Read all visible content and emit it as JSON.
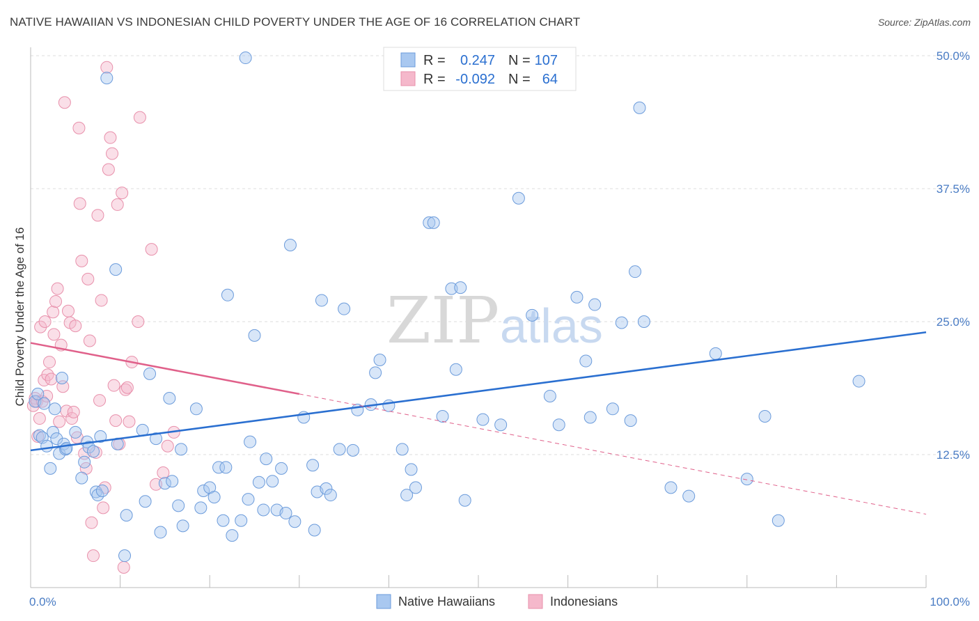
{
  "title": "NATIVE HAWAIIAN VS INDONESIAN CHILD POVERTY UNDER THE AGE OF 16 CORRELATION CHART",
  "source": "Source: ZipAtlas.com",
  "watermark": {
    "zip": "ZIP",
    "atlas": "atlas"
  },
  "colors": {
    "blue_fill": "#a9c8f0",
    "blue_stroke": "#6b9bdb",
    "blue_line": "#2a6fd0",
    "pink_fill": "#f5b8cb",
    "pink_stroke": "#e890ab",
    "pink_line": "#e0608a",
    "tick_text": "#4a7cc4",
    "grid": "#dddddd"
  },
  "legend_top": {
    "rows": [
      {
        "r_label": "R =",
        "r_value": "0.247",
        "n_label": "N =",
        "n_value": "107",
        "series": "blue"
      },
      {
        "r_label": "R =",
        "r_value": "-0.092",
        "n_label": "N =",
        "n_value": "64",
        "series": "pink"
      }
    ]
  },
  "chart_data": {
    "type": "scatter",
    "title": "NATIVE HAWAIIAN VS INDONESIAN CHILD POVERTY UNDER THE AGE OF 16 CORRELATION CHART",
    "xlabel": "",
    "ylabel": "Child Poverty Under the Age of 16",
    "xlim": [
      0,
      100
    ],
    "ylim": [
      0,
      50
    ],
    "x_tick_labels": [
      "0.0%",
      "100.0%"
    ],
    "y_ticks": [
      {
        "value": 12.5,
        "label": "12.5%"
      },
      {
        "value": 25.0,
        "label": "25.0%"
      },
      {
        "value": 37.5,
        "label": "37.5%"
      },
      {
        "value": 50.0,
        "label": "50.0%"
      }
    ],
    "grid": true,
    "legend_position": "bottom",
    "series": [
      {
        "name": "Native Hawaiians",
        "color": "#a9c8f0",
        "trend": {
          "x": [
            0,
            100
          ],
          "y": [
            12.9,
            24.0
          ],
          "style": "solid"
        },
        "points": [
          [
            0.5,
            17.5
          ],
          [
            0.8,
            18.2
          ],
          [
            1.0,
            14.3
          ],
          [
            1.3,
            14.1
          ],
          [
            1.5,
            17.3
          ],
          [
            1.8,
            13.3
          ],
          [
            2.2,
            11.2
          ],
          [
            2.5,
            14.6
          ],
          [
            2.7,
            16.8
          ],
          [
            2.9,
            14.0
          ],
          [
            3.2,
            12.6
          ],
          [
            3.5,
            19.7
          ],
          [
            3.7,
            13.5
          ],
          [
            3.9,
            13.0
          ],
          [
            4.0,
            13.1
          ],
          [
            5.0,
            14.6
          ],
          [
            5.7,
            10.3
          ],
          [
            6.0,
            11.8
          ],
          [
            6.3,
            13.7
          ],
          [
            6.5,
            13.2
          ],
          [
            7.0,
            12.8
          ],
          [
            7.3,
            9.0
          ],
          [
            7.5,
            8.7
          ],
          [
            7.8,
            14.2
          ],
          [
            8.0,
            9.1
          ],
          [
            8.5,
            47.9
          ],
          [
            9.5,
            29.9
          ],
          [
            9.7,
            13.5
          ],
          [
            10.5,
            3.0
          ],
          [
            10.7,
            6.8
          ],
          [
            12.5,
            14.8
          ],
          [
            12.8,
            8.1
          ],
          [
            13.3,
            20.1
          ],
          [
            14.0,
            14.0
          ],
          [
            14.5,
            5.2
          ],
          [
            15.0,
            9.8
          ],
          [
            15.5,
            17.8
          ],
          [
            15.8,
            10.0
          ],
          [
            16.5,
            7.7
          ],
          [
            16.8,
            13.0
          ],
          [
            17.0,
            5.8
          ],
          [
            18.5,
            16.8
          ],
          [
            19.0,
            7.5
          ],
          [
            19.3,
            9.1
          ],
          [
            20.0,
            9.4
          ],
          [
            20.5,
            8.5
          ],
          [
            21.0,
            11.3
          ],
          [
            21.5,
            6.3
          ],
          [
            21.8,
            11.3
          ],
          [
            22.0,
            27.5
          ],
          [
            22.5,
            4.9
          ],
          [
            23.5,
            6.3
          ],
          [
            24.0,
            49.8
          ],
          [
            24.3,
            8.3
          ],
          [
            24.5,
            13.7
          ],
          [
            25.0,
            23.7
          ],
          [
            25.5,
            9.9
          ],
          [
            26.0,
            7.3
          ],
          [
            26.3,
            12.1
          ],
          [
            27.0,
            10.0
          ],
          [
            27.5,
            7.3
          ],
          [
            28.0,
            11.2
          ],
          [
            28.5,
            7.0
          ],
          [
            29.0,
            32.2
          ],
          [
            29.5,
            6.2
          ],
          [
            30.5,
            16.0
          ],
          [
            31.5,
            11.5
          ],
          [
            31.7,
            5.4
          ],
          [
            32.0,
            9.0
          ],
          [
            32.5,
            27.0
          ],
          [
            33.0,
            9.3
          ],
          [
            33.5,
            8.7
          ],
          [
            34.5,
            13.0
          ],
          [
            35.0,
            26.2
          ],
          [
            36.0,
            12.9
          ],
          [
            36.5,
            16.7
          ],
          [
            38.0,
            17.2
          ],
          [
            38.5,
            20.2
          ],
          [
            39.0,
            21.4
          ],
          [
            40.0,
            17.1
          ],
          [
            40.5,
            49.4
          ],
          [
            41.5,
            13.0
          ],
          [
            42.0,
            8.7
          ],
          [
            42.5,
            11.1
          ],
          [
            43.0,
            9.4
          ],
          [
            44.5,
            34.3
          ],
          [
            45.0,
            34.3
          ],
          [
            46.0,
            16.1
          ],
          [
            47.0,
            28.1
          ],
          [
            47.5,
            20.5
          ],
          [
            48.0,
            28.2
          ],
          [
            48.5,
            8.2
          ],
          [
            50.5,
            15.8
          ],
          [
            52.5,
            15.3
          ],
          [
            54.5,
            36.6
          ],
          [
            56.0,
            25.6
          ],
          [
            58.0,
            18.0
          ],
          [
            59.0,
            15.3
          ],
          [
            61.0,
            27.3
          ],
          [
            62.0,
            21.3
          ],
          [
            62.5,
            16.0
          ],
          [
            63.0,
            26.6
          ],
          [
            65.0,
            16.8
          ],
          [
            66.0,
            24.9
          ],
          [
            67.0,
            15.7
          ],
          [
            67.5,
            29.7
          ],
          [
            68.0,
            45.1
          ],
          [
            68.5,
            25.0
          ],
          [
            71.5,
            9.4
          ],
          [
            73.5,
            8.6
          ],
          [
            76.5,
            22.0
          ],
          [
            80.0,
            10.2
          ],
          [
            82.0,
            16.1
          ],
          [
            83.5,
            6.3
          ],
          [
            92.5,
            19.4
          ]
        ]
      },
      {
        "name": "Indonesians",
        "color": "#f5b8cb",
        "trend": {
          "x": [
            0,
            30
          ],
          "y": [
            23.0,
            18.2
          ],
          "style": "solid",
          "dashed_to": {
            "x": 100,
            "y": 6.9
          }
        },
        "points": [
          [
            0.3,
            17.1
          ],
          [
            0.5,
            17.8
          ],
          [
            0.7,
            17.5
          ],
          [
            0.8,
            14.2
          ],
          [
            1.0,
            15.9
          ],
          [
            1.1,
            24.5
          ],
          [
            1.3,
            17.5
          ],
          [
            1.5,
            19.5
          ],
          [
            1.6,
            25.0
          ],
          [
            1.8,
            18.0
          ],
          [
            1.9,
            20.0
          ],
          [
            2.1,
            21.2
          ],
          [
            2.3,
            19.6
          ],
          [
            2.5,
            25.9
          ],
          [
            2.6,
            23.8
          ],
          [
            2.8,
            26.9
          ],
          [
            3.0,
            28.1
          ],
          [
            3.2,
            15.6
          ],
          [
            3.4,
            22.8
          ],
          [
            3.6,
            18.9
          ],
          [
            3.8,
            45.6
          ],
          [
            4.0,
            16.6
          ],
          [
            4.2,
            26.0
          ],
          [
            4.4,
            24.9
          ],
          [
            4.6,
            15.9
          ],
          [
            4.8,
            16.5
          ],
          [
            5.0,
            24.6
          ],
          [
            5.2,
            14.1
          ],
          [
            5.4,
            43.2
          ],
          [
            5.5,
            36.1
          ],
          [
            5.7,
            30.7
          ],
          [
            6.0,
            12.6
          ],
          [
            6.2,
            11.2
          ],
          [
            6.4,
            29.0
          ],
          [
            6.6,
            23.2
          ],
          [
            6.8,
            6.1
          ],
          [
            7.0,
            3.0
          ],
          [
            7.3,
            12.7
          ],
          [
            7.5,
            35.0
          ],
          [
            7.7,
            17.6
          ],
          [
            7.9,
            27.0
          ],
          [
            8.1,
            7.5
          ],
          [
            8.3,
            9.4
          ],
          [
            8.5,
            48.9
          ],
          [
            8.7,
            39.3
          ],
          [
            8.9,
            42.3
          ],
          [
            9.1,
            40.8
          ],
          [
            9.3,
            19.0
          ],
          [
            9.5,
            15.7
          ],
          [
            9.7,
            36.0
          ],
          [
            9.9,
            13.5
          ],
          [
            10.2,
            37.1
          ],
          [
            10.4,
            1.9
          ],
          [
            10.6,
            18.6
          ],
          [
            10.8,
            18.8
          ],
          [
            11.0,
            15.6
          ],
          [
            11.3,
            21.2
          ],
          [
            12.0,
            25.0
          ],
          [
            12.2,
            44.2
          ],
          [
            13.5,
            31.8
          ],
          [
            14.0,
            9.7
          ],
          [
            14.8,
            10.8
          ],
          [
            15.3,
            13.3
          ],
          [
            16.0,
            14.6
          ]
        ]
      }
    ]
  },
  "legend_bottom": [
    "Native Hawaiians",
    "Indonesians"
  ]
}
